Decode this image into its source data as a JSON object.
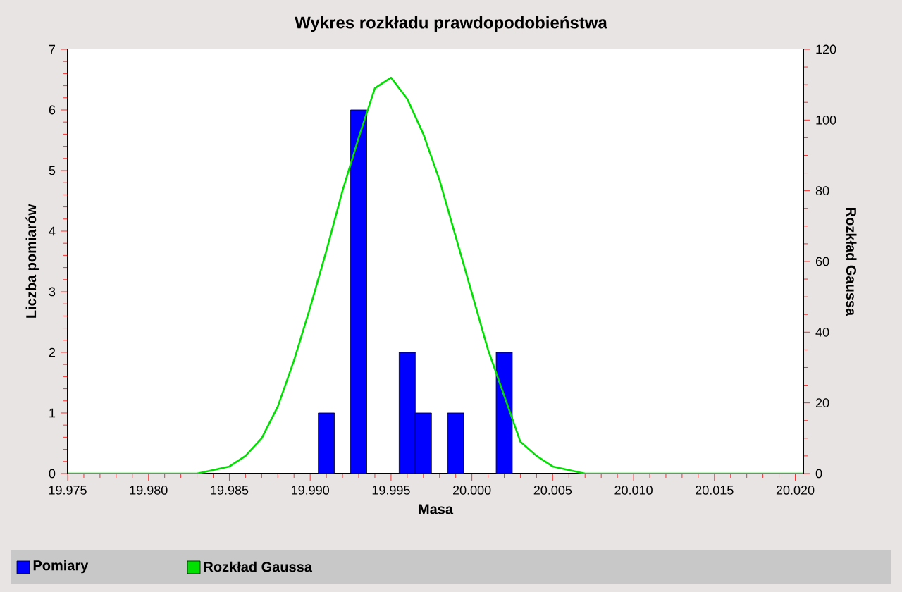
{
  "chart_data": {
    "type": "bar",
    "title": "Wykres rozkładu prawdopodobieństwa",
    "xlabel": "Masa",
    "ylabel": "Liczba pomiarów",
    "y2label": "Rozkład Gaussa",
    "xlim": [
      19.975,
      20.0205
    ],
    "ylim": [
      0,
      7
    ],
    "y2lim": [
      0,
      120
    ],
    "xticks": [
      {
        "value": 19.975,
        "label": "19.975"
      },
      {
        "value": 19.98,
        "label": "19.980"
      },
      {
        "value": 19.985,
        "label": "19.985"
      },
      {
        "value": 19.99,
        "label": "19.990"
      },
      {
        "value": 19.995,
        "label": "19.995"
      },
      {
        "value": 20.0,
        "label": "20.000"
      },
      {
        "value": 20.005,
        "label": "20.005"
      },
      {
        "value": 20.01,
        "label": "20.010"
      },
      {
        "value": 20.015,
        "label": "20.015"
      },
      {
        "value": 20.02,
        "label": "20.020"
      }
    ],
    "yticks": [
      0,
      1,
      2,
      3,
      4,
      5,
      6,
      7
    ],
    "y2ticks": [
      0,
      20,
      40,
      60,
      80,
      100,
      120
    ],
    "grid": false,
    "legend": "bottom",
    "series": [
      {
        "name": "Pomiary",
        "color": "#0000ff",
        "x": [
          19.991,
          19.993,
          19.996,
          19.997,
          19.999,
          20.002
        ],
        "values": [
          1,
          6,
          2,
          1,
          1,
          2
        ]
      },
      {
        "name": "Rozkład Gaussa",
        "type": "line",
        "axis": "y2",
        "color": "#00e000",
        "marker": "none",
        "line_style": "solid",
        "x": [
          19.975,
          19.983,
          19.984,
          19.985,
          19.986,
          19.987,
          19.988,
          19.989,
          19.99,
          19.991,
          19.992,
          19.993,
          19.994,
          19.995,
          19.996,
          19.997,
          19.998,
          19.999,
          20.0,
          20.001,
          20.002,
          20.003,
          20.004,
          20.005,
          20.006,
          20.007,
          20.0205
        ],
        "values": [
          0,
          0,
          1,
          2,
          5,
          10,
          19,
          32,
          47,
          63,
          80,
          95,
          109,
          112,
          106,
          96,
          83,
          67,
          51,
          35,
          22,
          9,
          5,
          2,
          1,
          0,
          0
        ]
      }
    ]
  }
}
